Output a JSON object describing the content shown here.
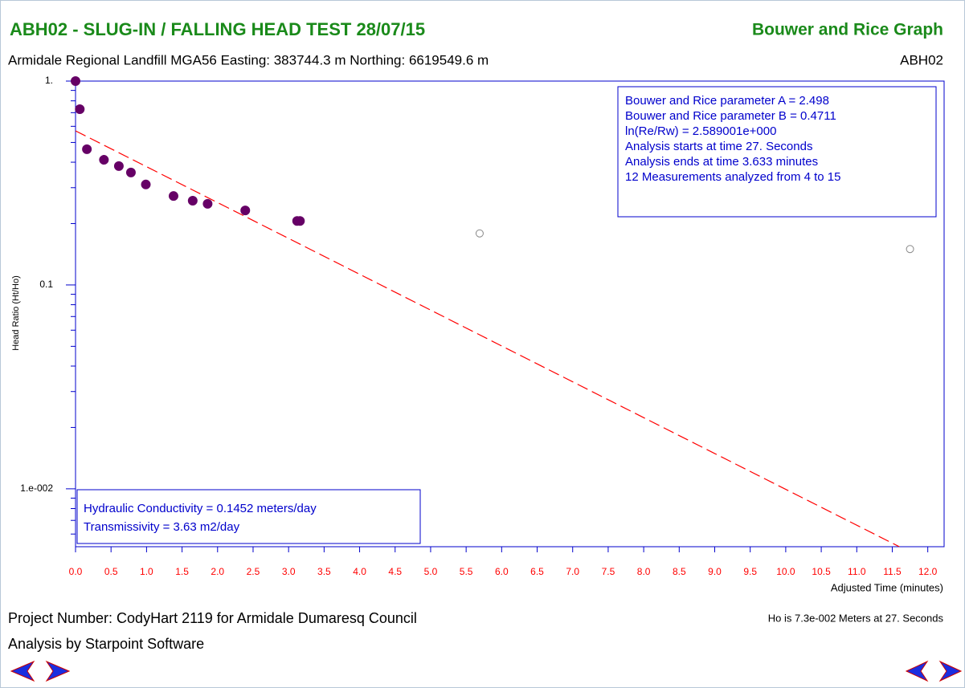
{
  "chart_data": {
    "type": "scatter",
    "title": "ABH02 - SLUG-IN / FALLING HEAD TEST 28/07/15",
    "title_right": "Bouwer and Rice Graph",
    "subtitle": "Armidale Regional Landfill MGA56 Easting: 383744.3 m Northing: 6619549.6 m",
    "subtitle_right": "ABH02",
    "ylabel": "Head Ratio (Ht/Ho)",
    "xlabel": "Adjusted Time (minutes)",
    "log_y": true,
    "xlim": [
      0,
      12.23
    ],
    "ylim": [
      0.0052,
      1
    ],
    "xticks": [
      {
        "value": 0,
        "label": "0.0"
      },
      0.5,
      {
        "value": 1,
        "label": "1.0"
      },
      1.5,
      {
        "value": 2,
        "label": "2.0"
      },
      2.5,
      {
        "value": 3,
        "label": "3.0"
      },
      3.5,
      {
        "value": 4,
        "label": "4.0"
      },
      4.5,
      {
        "value": 5,
        "label": "5.0"
      },
      5.5,
      {
        "value": 6,
        "label": "6.0"
      },
      6.5,
      {
        "value": 7,
        "label": "7.0"
      },
      7.5,
      {
        "value": 8,
        "label": "8.0"
      },
      8.5,
      {
        "value": 9,
        "label": "9.0"
      },
      9.5,
      {
        "value": 10,
        "label": "10.0"
      },
      10.5,
      {
        "value": 11,
        "label": "11.0"
      },
      11.5,
      {
        "value": 12,
        "label": "12.0"
      }
    ],
    "yticks": [
      {
        "value": 1,
        "label": "1."
      },
      0.1,
      {
        "value": 0.01,
        "label": "1.e-002"
      }
    ],
    "yminorticks": [
      0.9,
      0.8,
      0.7,
      0.6,
      0.5,
      0.4,
      0.3,
      0.2,
      0.09,
      0.08,
      0.07,
      0.06,
      0.05,
      0.04,
      0.03,
      0.02,
      0.009,
      0.008,
      0.007,
      0.006
    ],
    "series": [
      {
        "color": "#660066",
        "marker": "filled",
        "x": [
          0,
          0.06,
          0.16,
          0.4,
          0.61,
          0.78,
          0.99,
          1.38,
          1.65,
          1.86,
          2.39,
          3.12,
          3.16
        ],
        "values": [
          1.0,
          0.728,
          0.463,
          0.411,
          0.383,
          0.356,
          0.311,
          0.273,
          0.259,
          0.25,
          0.232,
          0.206,
          0.206
        ]
      },
      {
        "color": "#888888",
        "marker": "open",
        "x": [
          5.69,
          11.75
        ],
        "values": [
          0.179,
          0.15
        ]
      },
      {
        "color": "#ff0000",
        "marker": "dashed-line",
        "x": [
          0,
          11.6
        ],
        "values": [
          0.57,
          0.0052
        ]
      }
    ],
    "fit_box": [
      "Bouwer and Rice parameter A = 2.498",
      "Bouwer and Rice parameter B = 0.4711",
      "ln(Re/Rw) = 2.589001e+000",
      "Analysis starts at time 27. Seconds",
      "Analysis ends at time 3.633 minutes",
      "12 Measurements analyzed from 4 to 15"
    ],
    "results_box": [
      "Hydraulic Conductivity = 0.1452 meters/day",
      "Transmissivity = 3.63 m2/day"
    ],
    "project": "Project Number: CodyHart 2119 for Armidale Dumaresq Council",
    "analysis_by": "Analysis by Starpoint Software",
    "ho_note": "Ho is 7.3e-002 Meters at 27. Seconds"
  }
}
